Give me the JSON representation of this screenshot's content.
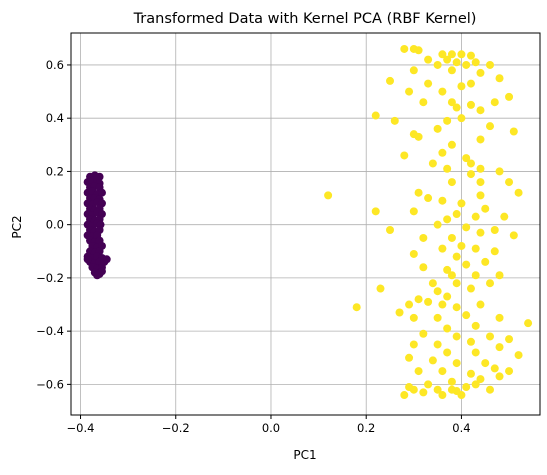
{
  "chart_data": {
    "type": "scatter",
    "title": "Transformed Data with Kernel PCA (RBF Kernel)",
    "xlabel": "PC1",
    "ylabel": "PC2",
    "xlim": [
      -0.42,
      0.565
    ],
    "ylim": [
      -0.715,
      0.72
    ],
    "xticks": [
      -0.4,
      -0.2,
      0.0,
      0.2,
      0.4
    ],
    "xtick_labels": [
      "−0.4",
      "−0.2",
      "0.0",
      "0.2",
      "0.4"
    ],
    "yticks": [
      -0.6,
      -0.4,
      -0.2,
      0.0,
      0.2,
      0.4,
      0.6
    ],
    "ytick_labels": [
      "−0.6",
      "−0.4",
      "−0.2",
      "0.0",
      "0.2",
      "0.4",
      "0.6"
    ],
    "grid": true,
    "colors": {
      "class_0": "#440154",
      "class_1": "#fde725"
    },
    "series": [
      {
        "color": "#440154",
        "points": [
          [
            -0.38,
            0.18
          ],
          [
            -0.37,
            0.185
          ],
          [
            -0.36,
            0.18
          ],
          [
            -0.385,
            0.16
          ],
          [
            -0.375,
            0.165
          ],
          [
            -0.365,
            0.17
          ],
          [
            -0.36,
            0.155
          ],
          [
            -0.38,
            0.14
          ],
          [
            -0.37,
            0.145
          ],
          [
            -0.36,
            0.14
          ],
          [
            -0.385,
            0.12
          ],
          [
            -0.375,
            0.125
          ],
          [
            -0.365,
            0.115
          ],
          [
            -0.355,
            0.12
          ],
          [
            -0.38,
            0.1
          ],
          [
            -0.37,
            0.1
          ],
          [
            -0.36,
            0.095
          ],
          [
            -0.385,
            0.08
          ],
          [
            -0.375,
            0.075
          ],
          [
            -0.365,
            0.085
          ],
          [
            -0.355,
            0.08
          ],
          [
            -0.38,
            0.06
          ],
          [
            -0.37,
            0.055
          ],
          [
            -0.36,
            0.06
          ],
          [
            -0.385,
            0.04
          ],
          [
            -0.375,
            0.035
          ],
          [
            -0.365,
            0.045
          ],
          [
            -0.355,
            0.04
          ],
          [
            -0.38,
            0.02
          ],
          [
            -0.37,
            0.015
          ],
          [
            -0.36,
            0.02
          ],
          [
            -0.385,
            0.0
          ],
          [
            -0.375,
            -0.005
          ],
          [
            -0.365,
            0.005
          ],
          [
            -0.358,
            0.0
          ],
          [
            -0.38,
            -0.02
          ],
          [
            -0.37,
            -0.025
          ],
          [
            -0.36,
            -0.02
          ],
          [
            -0.385,
            -0.04
          ],
          [
            -0.375,
            -0.045
          ],
          [
            -0.365,
            -0.04
          ],
          [
            -0.38,
            -0.06
          ],
          [
            -0.37,
            -0.065
          ],
          [
            -0.36,
            -0.06
          ],
          [
            -0.375,
            -0.08
          ],
          [
            -0.365,
            -0.085
          ],
          [
            -0.355,
            -0.08
          ],
          [
            -0.38,
            -0.1
          ],
          [
            -0.37,
            -0.105
          ],
          [
            -0.36,
            -0.1
          ],
          [
            -0.385,
            -0.12
          ],
          [
            -0.375,
            -0.125
          ],
          [
            -0.365,
            -0.12
          ],
          [
            -0.355,
            -0.125
          ],
          [
            -0.38,
            -0.14
          ],
          [
            -0.37,
            -0.145
          ],
          [
            -0.36,
            -0.14
          ],
          [
            -0.375,
            -0.16
          ],
          [
            -0.365,
            -0.165
          ],
          [
            -0.355,
            -0.16
          ],
          [
            -0.37,
            -0.18
          ],
          [
            -0.36,
            -0.185
          ],
          [
            -0.365,
            -0.19
          ],
          [
            -0.355,
            -0.175
          ],
          [
            -0.35,
            -0.14
          ],
          [
            -0.345,
            -0.13
          ],
          [
            -0.385,
            -0.13
          ]
        ]
      },
      {
        "color": "#fde725",
        "points": [
          [
            0.28,
            0.66
          ],
          [
            0.3,
            0.66
          ],
          [
            0.31,
            0.655
          ],
          [
            0.36,
            0.64
          ],
          [
            0.38,
            0.64
          ],
          [
            0.4,
            0.64
          ],
          [
            0.42,
            0.635
          ],
          [
            0.33,
            0.62
          ],
          [
            0.35,
            0.6
          ],
          [
            0.37,
            0.62
          ],
          [
            0.39,
            0.61
          ],
          [
            0.41,
            0.6
          ],
          [
            0.43,
            0.61
          ],
          [
            0.46,
            0.6
          ],
          [
            0.3,
            0.58
          ],
          [
            0.38,
            0.58
          ],
          [
            0.44,
            0.57
          ],
          [
            0.48,
            0.55
          ],
          [
            0.25,
            0.54
          ],
          [
            0.33,
            0.53
          ],
          [
            0.4,
            0.52
          ],
          [
            0.42,
            0.53
          ],
          [
            0.36,
            0.5
          ],
          [
            0.29,
            0.5
          ],
          [
            0.32,
            0.46
          ],
          [
            0.38,
            0.46
          ],
          [
            0.42,
            0.45
          ],
          [
            0.5,
            0.48
          ],
          [
            0.47,
            0.46
          ],
          [
            0.39,
            0.44
          ],
          [
            0.44,
            0.43
          ],
          [
            0.22,
            0.41
          ],
          [
            0.26,
            0.39
          ],
          [
            0.37,
            0.39
          ],
          [
            0.4,
            0.4
          ],
          [
            0.35,
            0.36
          ],
          [
            0.3,
            0.34
          ],
          [
            0.31,
            0.33
          ],
          [
            0.46,
            0.37
          ],
          [
            0.51,
            0.35
          ],
          [
            0.44,
            0.32
          ],
          [
            0.38,
            0.3
          ],
          [
            0.36,
            0.27
          ],
          [
            0.28,
            0.26
          ],
          [
            0.41,
            0.25
          ],
          [
            0.34,
            0.23
          ],
          [
            0.42,
            0.23
          ],
          [
            0.44,
            0.21
          ],
          [
            0.37,
            0.21
          ],
          [
            0.48,
            0.2
          ],
          [
            0.44,
            0.16
          ],
          [
            0.38,
            0.16
          ],
          [
            0.42,
            0.19
          ],
          [
            0.5,
            0.16
          ],
          [
            0.31,
            0.12
          ],
          [
            0.12,
            0.11
          ],
          [
            0.44,
            0.11
          ],
          [
            0.33,
            0.1
          ],
          [
            0.52,
            0.12
          ],
          [
            0.36,
            0.09
          ],
          [
            0.4,
            0.08
          ],
          [
            0.45,
            0.06
          ],
          [
            0.3,
            0.05
          ],
          [
            0.39,
            0.04
          ],
          [
            0.22,
            0.05
          ],
          [
            0.43,
            0.03
          ],
          [
            0.49,
            0.03
          ],
          [
            0.37,
            0.02
          ],
          [
            0.35,
            0.0
          ],
          [
            0.41,
            -0.01
          ],
          [
            0.47,
            -0.02
          ],
          [
            0.25,
            -0.02
          ],
          [
            0.44,
            -0.03
          ],
          [
            0.51,
            -0.04
          ],
          [
            0.38,
            -0.05
          ],
          [
            0.32,
            -0.05
          ],
          [
            0.36,
            -0.09
          ],
          [
            0.4,
            -0.08
          ],
          [
            0.43,
            -0.09
          ],
          [
            0.47,
            -0.1
          ],
          [
            0.3,
            -0.11
          ],
          [
            0.39,
            -0.12
          ],
          [
            0.45,
            -0.14
          ],
          [
            0.41,
            -0.15
          ],
          [
            0.37,
            -0.17
          ],
          [
            0.32,
            -0.16
          ],
          [
            0.38,
            -0.19
          ],
          [
            0.43,
            -0.19
          ],
          [
            0.48,
            -0.19
          ],
          [
            0.39,
            -0.22
          ],
          [
            0.34,
            -0.22
          ],
          [
            0.46,
            -0.22
          ],
          [
            0.42,
            -0.24
          ],
          [
            0.23,
            -0.24
          ],
          [
            0.35,
            -0.25
          ],
          [
            0.37,
            -0.27
          ],
          [
            0.31,
            -0.28
          ],
          [
            0.33,
            -0.29
          ],
          [
            0.29,
            -0.3
          ],
          [
            0.36,
            -0.3
          ],
          [
            0.39,
            -0.31
          ],
          [
            0.44,
            -0.3
          ],
          [
            0.18,
            -0.31
          ],
          [
            0.27,
            -0.33
          ],
          [
            0.41,
            -0.34
          ],
          [
            0.48,
            -0.35
          ],
          [
            0.35,
            -0.35
          ],
          [
            0.3,
            -0.35
          ],
          [
            0.54,
            -0.37
          ],
          [
            0.43,
            -0.38
          ],
          [
            0.37,
            -0.39
          ],
          [
            0.32,
            -0.41
          ],
          [
            0.39,
            -0.42
          ],
          [
            0.46,
            -0.42
          ],
          [
            0.5,
            -0.43
          ],
          [
            0.42,
            -0.44
          ],
          [
            0.35,
            -0.45
          ],
          [
            0.3,
            -0.45
          ],
          [
            0.48,
            -0.46
          ],
          [
            0.37,
            -0.48
          ],
          [
            0.43,
            -0.48
          ],
          [
            0.52,
            -0.49
          ],
          [
            0.29,
            -0.5
          ],
          [
            0.34,
            -0.51
          ],
          [
            0.39,
            -0.52
          ],
          [
            0.45,
            -0.52
          ],
          [
            0.47,
            -0.54
          ],
          [
            0.31,
            -0.55
          ],
          [
            0.36,
            -0.55
          ],
          [
            0.42,
            -0.56
          ],
          [
            0.5,
            -0.55
          ],
          [
            0.48,
            -0.57
          ],
          [
            0.44,
            -0.58
          ],
          [
            0.38,
            -0.59
          ],
          [
            0.33,
            -0.6
          ],
          [
            0.29,
            -0.61
          ],
          [
            0.3,
            -0.62
          ],
          [
            0.35,
            -0.62
          ],
          [
            0.38,
            -0.62
          ],
          [
            0.41,
            -0.61
          ],
          [
            0.43,
            -0.6
          ],
          [
            0.46,
            -0.62
          ],
          [
            0.28,
            -0.64
          ],
          [
            0.32,
            -0.63
          ],
          [
            0.36,
            -0.64
          ],
          [
            0.4,
            -0.64
          ],
          [
            0.39,
            -0.625
          ]
        ]
      }
    ]
  }
}
